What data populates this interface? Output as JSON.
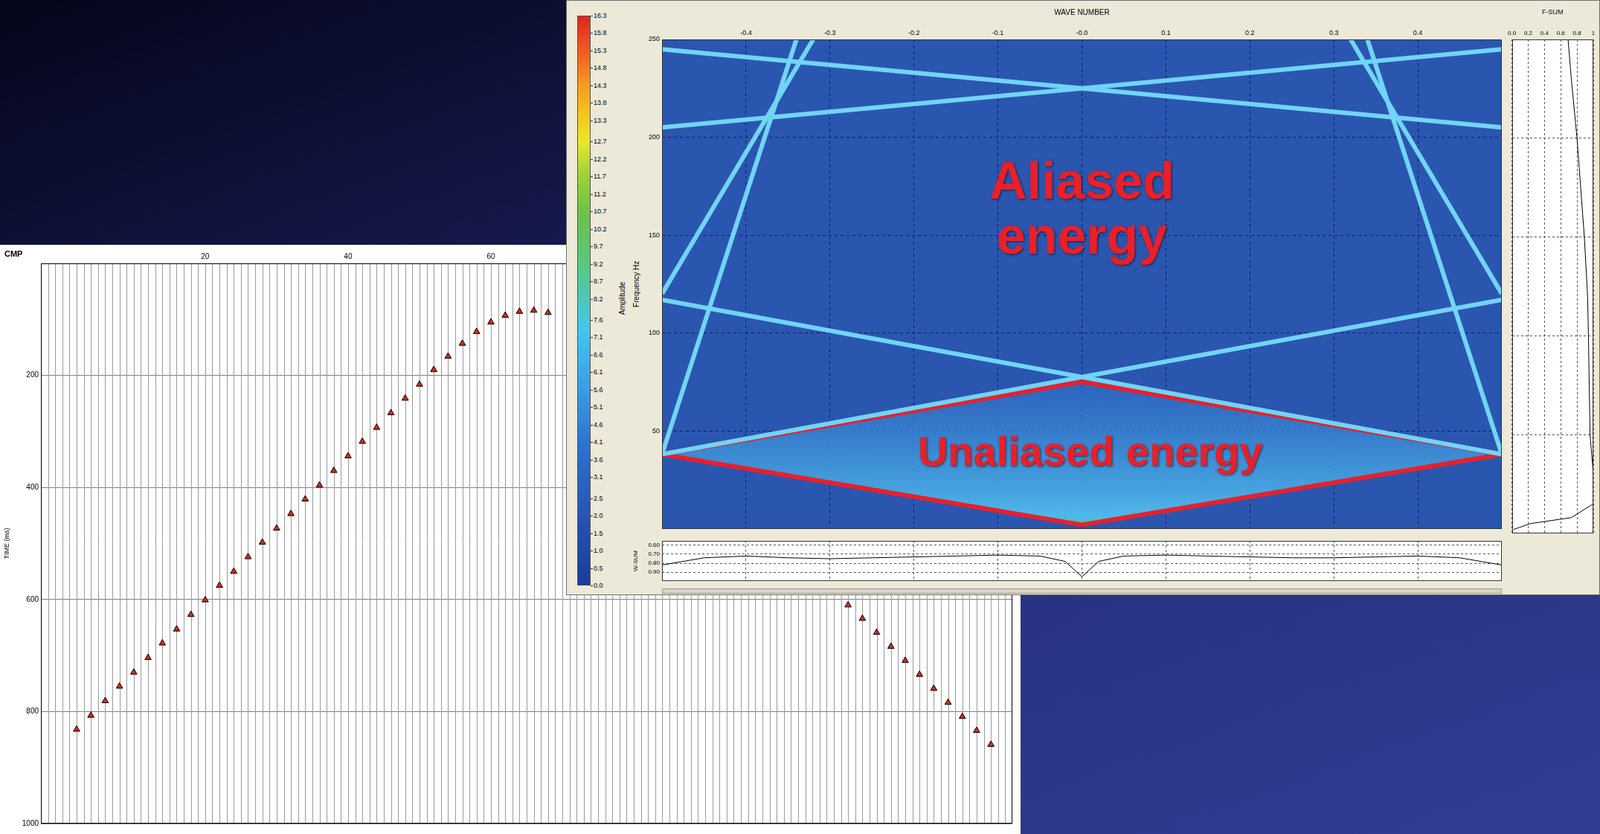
{
  "chart_data": [
    {
      "type": "scatter",
      "x_label": "CMP",
      "y_label": "TIME (ms)",
      "xlim": [
        -3,
        133
      ],
      "ylim": [
        1000,
        0
      ],
      "xticks": [
        20,
        40,
        60
      ],
      "yticks": [
        200,
        400,
        600,
        800,
        1000
      ],
      "grid": "y",
      "series": [
        {
          "color": "#d42a1e",
          "marker": "triangle",
          "x": [
            2,
            4,
            6,
            8,
            10,
            12,
            14,
            16,
            18,
            20,
            22,
            24,
            26,
            28,
            30,
            32,
            34,
            36,
            38,
            40,
            42,
            44,
            46,
            48,
            50,
            52,
            54,
            56,
            58,
            60,
            62,
            64,
            66,
            68
          ],
          "values": [
            832,
            807,
            781,
            755,
            730,
            704,
            678,
            653,
            627,
            601,
            575,
            550,
            524,
            498,
            473,
            447,
            421,
            396,
            370,
            344,
            318,
            293,
            267,
            241,
            216,
            190,
            166,
            143,
            122,
            105,
            93,
            86,
            84,
            88
          ]
        },
        {
          "color": "#d42a1e",
          "marker": "triangle",
          "x": [
            110,
            112,
            114,
            116,
            118,
            120,
            122,
            124,
            126,
            128,
            130
          ],
          "values": [
            610,
            634,
            659,
            684,
            709,
            734,
            759,
            784,
            809,
            834,
            859
          ]
        }
      ]
    },
    {
      "type": "line",
      "x_label": "WAVE NUMBER",
      "y_label": "Frequency Hz",
      "xlim": [
        -0.5,
        0.5
      ],
      "ylim": [
        0,
        250
      ],
      "xticks": [
        -0.4,
        -0.3,
        -0.2,
        -0.1,
        {
          "value": 0,
          "label": "-0.0"
        },
        0.1,
        0.2,
        0.3,
        0.4
      ],
      "yticks": [
        50,
        100,
        150,
        200,
        250
      ],
      "grid": true,
      "colorbar": {
        "label": "Amplitude",
        "range": [
          0,
          16.3
        ],
        "ticks": [
          {
            "value": 0,
            "label": "0.0"
          },
          0.5,
          {
            "value": 1,
            "label": "1.0"
          },
          1.5,
          {
            "value": 2,
            "label": "2.0"
          },
          2.5,
          3.1,
          3.6,
          4.1,
          4.6,
          5.1,
          5.6,
          6.1,
          6.6,
          7.1,
          7.6,
          8.2,
          8.7,
          9.2,
          9.7,
          10.2,
          10.7,
          11.2,
          11.7,
          12.2,
          12.7,
          13.3,
          13.8,
          14.3,
          14.8,
          15.3,
          15.8,
          16.3
        ]
      },
      "series": [
        {
          "color": "#72d4f7",
          "x": [
            -0.5,
            0.5
          ],
          "values": [
            38,
            117
          ]
        },
        {
          "color": "#72d4f7",
          "x": [
            0.5,
            -0.5
          ],
          "values": [
            38,
            117
          ]
        },
        {
          "color": "#72d4f7",
          "x": [
            -0.5,
            -0.34
          ],
          "values": [
            38,
            250
          ]
        },
        {
          "color": "#72d4f7",
          "x": [
            0.5,
            0.34
          ],
          "values": [
            38,
            250
          ]
        },
        {
          "color": "#72d4f7",
          "x": [
            -0.5,
            -0.32
          ],
          "values": [
            120,
            250
          ]
        },
        {
          "color": "#72d4f7",
          "x": [
            0.5,
            0.32
          ],
          "values": [
            120,
            250
          ]
        },
        {
          "color": "#72d4f7",
          "x": [
            -0.5,
            0.5
          ],
          "values": [
            205,
            245
          ]
        },
        {
          "color": "#72d4f7",
          "x": [
            0.5,
            -0.5
          ],
          "values": [
            205,
            245
          ]
        },
        {
          "color": "#e8202a",
          "x": [
            -0.5,
            0,
            0.5,
            0,
            -0.5
          ],
          "values": [
            38,
            75,
            38,
            2,
            38
          ]
        }
      ],
      "annotations": [
        {
          "text": "Aliased\nenergy",
          "x": 0,
          "y": 162,
          "color": "#e8202a"
        },
        {
          "text": "Unaliased energy",
          "x": 0.01,
          "y": 38,
          "color": "#e8202a"
        }
      ]
    },
    {
      "type": "line",
      "x_label": "F-SUM",
      "xlim": [
        0,
        1
      ],
      "ylim": [
        0,
        250
      ],
      "xticks": [
        {
          "value": 0,
          "label": "0.0"
        },
        0.2,
        0.4,
        0.6,
        0.8,
        1
      ],
      "yticks": [
        50,
        100,
        150,
        200
      ],
      "grid": true,
      "tick_labels": "x",
      "series": [
        {
          "color": "#000000",
          "x": [
            0.69,
            0.73,
            0.8,
            0.89,
            0.93,
            0.94,
            0.95,
            0.96,
            1.0,
            1.0,
            0.73,
            0.23,
            0.02
          ],
          "values": [
            250,
            230,
            200,
            150,
            120,
            100,
            75,
            50,
            30,
            15,
            8,
            5,
            2
          ]
        }
      ]
    },
    {
      "type": "line",
      "y_label": "W-SUM",
      "xlim": [
        -0.5,
        0.5
      ],
      "ylim": [
        1.0,
        0.55
      ],
      "xticks": [
        -0.4,
        -0.3,
        -0.2,
        -0.1,
        0,
        0.1,
        0.2,
        0.3,
        0.4
      ],
      "yticks": [
        {
          "value": 0.6,
          "label": "0.60"
        },
        {
          "value": 0.7,
          "label": "0.70"
        },
        {
          "value": 0.8,
          "label": "0.80"
        },
        {
          "value": 0.9,
          "label": "0.90"
        }
      ],
      "grid": true,
      "tick_labels": "y",
      "series": [
        {
          "color": "#000000",
          "x": [
            -0.5,
            -0.45,
            -0.4,
            -0.35,
            -0.3,
            -0.25,
            -0.2,
            -0.15,
            -0.1,
            -0.05,
            -0.02,
            0,
            0.02,
            0.05,
            0.1,
            0.15,
            0.2,
            0.25,
            0.3,
            0.35,
            0.4,
            0.45,
            0.5
          ],
          "values": [
            0.82,
            0.74,
            0.72,
            0.74,
            0.75,
            0.74,
            0.73,
            0.72,
            0.71,
            0.72,
            0.78,
            0.95,
            0.78,
            0.72,
            0.71,
            0.72,
            0.73,
            0.74,
            0.74,
            0.73,
            0.72,
            0.74,
            0.82
          ]
        }
      ]
    }
  ]
}
